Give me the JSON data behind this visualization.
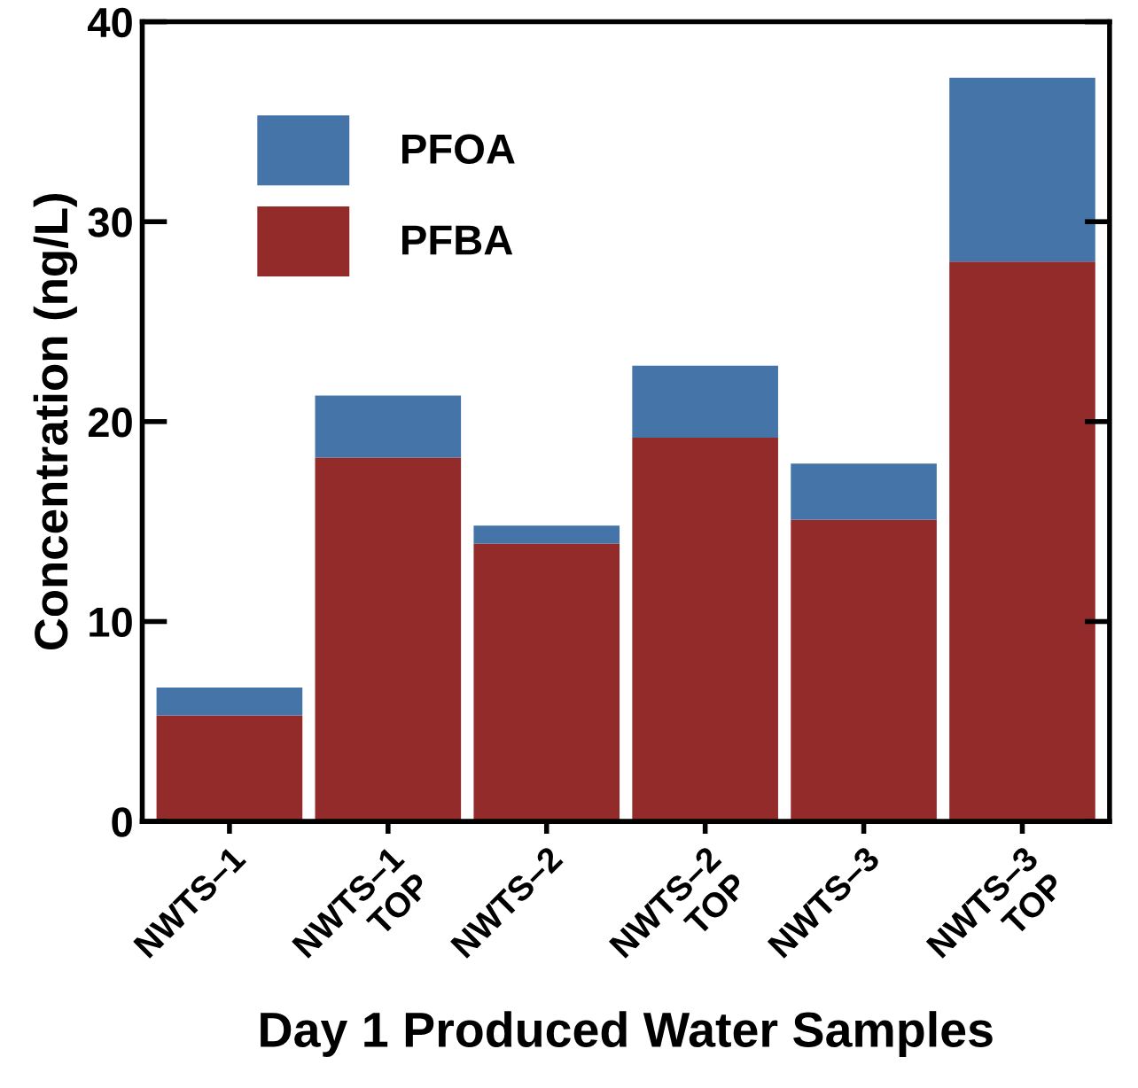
{
  "chart_data": {
    "type": "bar",
    "stacked": true,
    "categories": [
      "NWTS–1",
      "NWTS–1\nTOP",
      "NWTS–2",
      "NWTS–2\nTOP",
      "NWTS–3",
      "NWTS–3\nTOP"
    ],
    "series": [
      {
        "name": "PFBA",
        "color": "#922b29",
        "values": [
          5.3,
          18.2,
          13.9,
          19.2,
          15.1,
          28.0
        ]
      },
      {
        "name": "PFOA",
        "color": "#4575a8",
        "values": [
          1.4,
          3.1,
          0.9,
          3.6,
          2.8,
          9.2
        ]
      }
    ],
    "xlabel": "Day 1 Produced Water Samples",
    "ylabel": "Concentration (ng/L)",
    "ylim": [
      0,
      40
    ],
    "yticks": [
      0,
      10,
      20,
      30,
      40
    ],
    "grid": false,
    "legend": "top left"
  }
}
